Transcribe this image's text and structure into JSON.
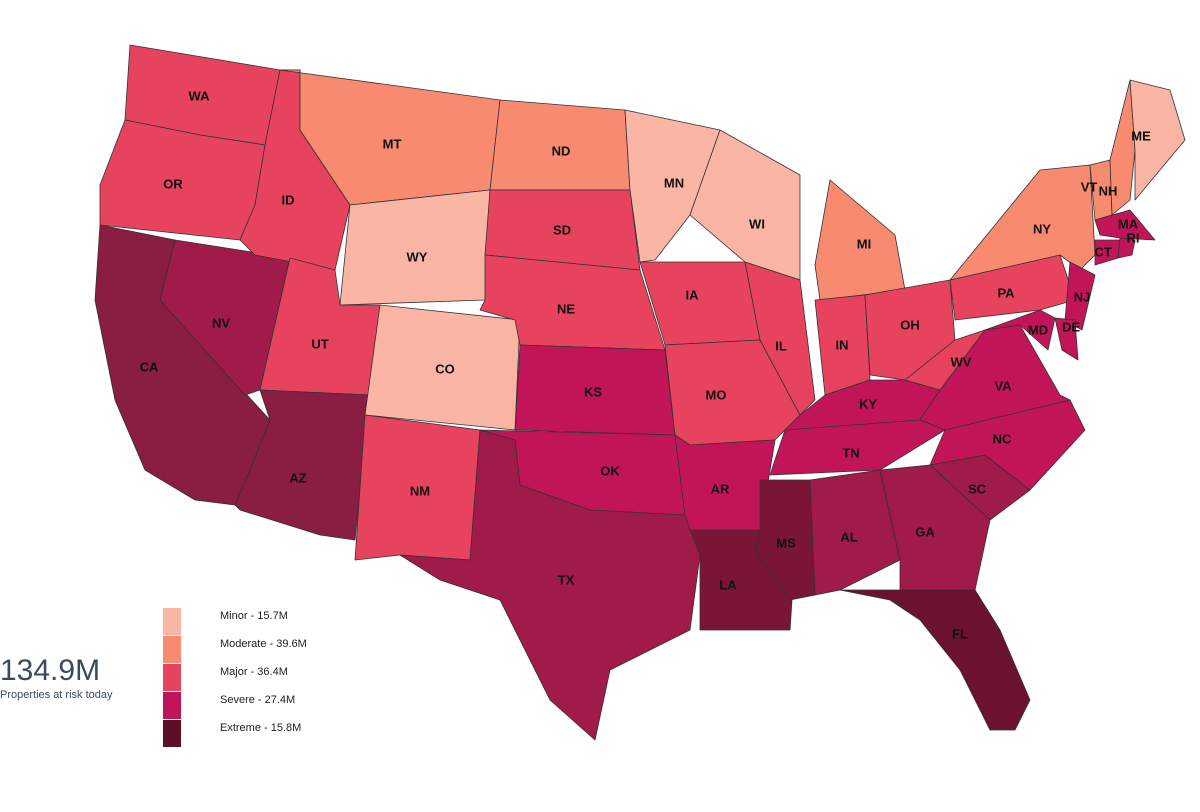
{
  "summary": {
    "value": "134.9M",
    "caption": "Properties at risk today"
  },
  "legend": [
    {
      "label": "Minor - 15.7M",
      "color": "#fbb5a5"
    },
    {
      "label": "Moderate - 39.6M",
      "color": "#f88a70"
    },
    {
      "label": "Major - 36.4M",
      "color": "#e8435e"
    },
    {
      "label": "Severe - 27.4M",
      "color": "#c21559"
    },
    {
      "label": "Extreme - 15.8M",
      "color": "#5c1025"
    }
  ],
  "states": [
    {
      "label": "WA",
      "color": "#e8435e"
    },
    {
      "label": "OR",
      "color": "#e8435e"
    },
    {
      "label": "CA",
      "color": "#8a1d42"
    },
    {
      "label": "NV",
      "color": "#a01a4a"
    },
    {
      "label": "ID",
      "color": "#e8435e"
    },
    {
      "label": "MT",
      "color": "#f88a70"
    },
    {
      "label": "WY",
      "color": "#fbb5a5"
    },
    {
      "label": "UT",
      "color": "#e8435e"
    },
    {
      "label": "AZ",
      "color": "#8a1d42"
    },
    {
      "label": "CO",
      "color": "#fbb5a5"
    },
    {
      "label": "NM",
      "color": "#e8435e"
    },
    {
      "label": "ND",
      "color": "#f88a70"
    },
    {
      "label": "SD",
      "color": "#e8435e"
    },
    {
      "label": "NE",
      "color": "#e8435e"
    },
    {
      "label": "KS",
      "color": "#c21559"
    },
    {
      "label": "OK",
      "color": "#c21559"
    },
    {
      "label": "TX",
      "color": "#a01a4a"
    },
    {
      "label": "MN",
      "color": "#fbb5a5"
    },
    {
      "label": "IA",
      "color": "#e8435e"
    },
    {
      "label": "MO",
      "color": "#e8435e"
    },
    {
      "label": "AR",
      "color": "#c21559"
    },
    {
      "label": "LA",
      "color": "#7a1535"
    },
    {
      "label": "WI",
      "color": "#fbb5a5"
    },
    {
      "label": "IL",
      "color": "#e8435e"
    },
    {
      "label": "MI",
      "color": "#f88a70"
    },
    {
      "label": "IN",
      "color": "#e8435e"
    },
    {
      "label": "OH",
      "color": "#e8435e"
    },
    {
      "label": "KY",
      "color": "#c21559"
    },
    {
      "label": "TN",
      "color": "#c21559"
    },
    {
      "label": "MS",
      "color": "#7a1535"
    },
    {
      "label": "AL",
      "color": "#a01a4a"
    },
    {
      "label": "GA",
      "color": "#a01a4a"
    },
    {
      "label": "FL",
      "color": "#6a1230"
    },
    {
      "label": "SC",
      "color": "#a01a4a"
    },
    {
      "label": "NC",
      "color": "#c21559"
    },
    {
      "label": "VA",
      "color": "#c21559"
    },
    {
      "label": "WV",
      "color": "#e8435e"
    },
    {
      "label": "PA",
      "color": "#e8435e"
    },
    {
      "label": "NY",
      "color": "#f88a70"
    },
    {
      "label": "NJ",
      "color": "#c21559"
    },
    {
      "label": "MD",
      "color": "#c21559"
    },
    {
      "label": "DE",
      "color": "#c21559"
    },
    {
      "label": "VT",
      "color": "#f88a70"
    },
    {
      "label": "NH",
      "color": "#f88a70"
    },
    {
      "label": "ME",
      "color": "#fbb5a5"
    },
    {
      "label": "MA",
      "color": "#c21559"
    },
    {
      "label": "CT",
      "color": "#c21559"
    },
    {
      "label": "RI",
      "color": "#c21559"
    }
  ]
}
